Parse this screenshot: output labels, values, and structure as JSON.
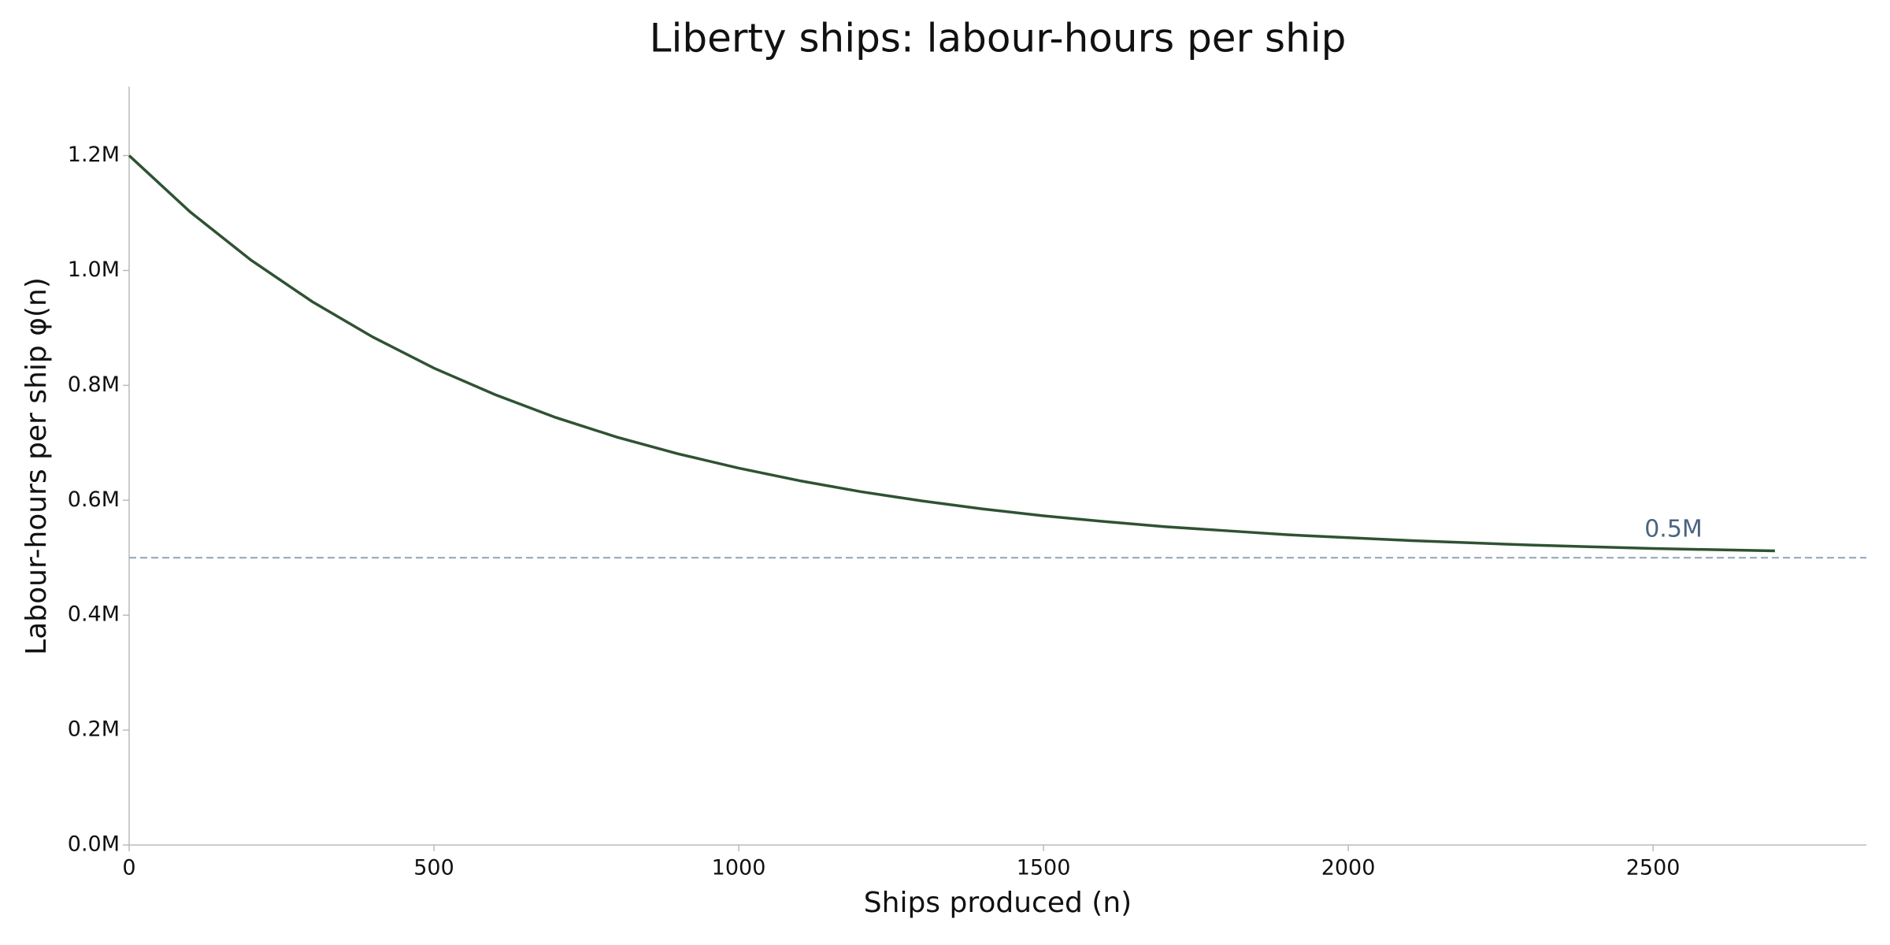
{
  "chart_data": {
    "type": "line",
    "title": "Liberty ships: labour-hours per ship",
    "x_label": "Ships produced (n)",
    "y_label": "Labour-hours per ship  φ(n)",
    "x": [
      0,
      100,
      200,
      300,
      400,
      500,
      600,
      700,
      800,
      900,
      1000,
      1100,
      1200,
      1300,
      1400,
      1500,
      1600,
      1700,
      1800,
      1900,
      2000,
      2100,
      2200,
      2300,
      2400,
      2500,
      2600,
      2700
    ],
    "series": [
      {
        "color": "#2f5233",
        "values": [
          1200000,
          1102000,
          1018000,
          946000,
          884000,
          830000,
          784000,
          744000,
          710000,
          681000,
          656000,
          634000,
          615000,
          599000,
          585000,
          573000,
          563000,
          554000,
          547000,
          540000,
          535000,
          530000,
          526000,
          522000,
          519000,
          516000,
          514000,
          512000
        ]
      }
    ],
    "reference_line": {
      "value": 500000,
      "label": "0.5M",
      "color": "#8fa3b8",
      "label_color": "#4a6480"
    },
    "xlim": [
      0,
      2850
    ],
    "xticks": [
      0,
      500,
      1000,
      1500,
      2000,
      2500
    ],
    "ylim": [
      0,
      1320000
    ],
    "yticks": [
      {
        "value": 0,
        "label": "0.0M"
      },
      {
        "value": 200000,
        "label": "0.2M"
      },
      {
        "value": 400000,
        "label": "0.4M"
      },
      {
        "value": 600000,
        "label": "0.6M"
      },
      {
        "value": 800000,
        "label": "0.8M"
      },
      {
        "value": 1000000,
        "label": "1.0M"
      },
      {
        "value": 1200000,
        "label": "1.2M"
      }
    ],
    "grid": false
  }
}
